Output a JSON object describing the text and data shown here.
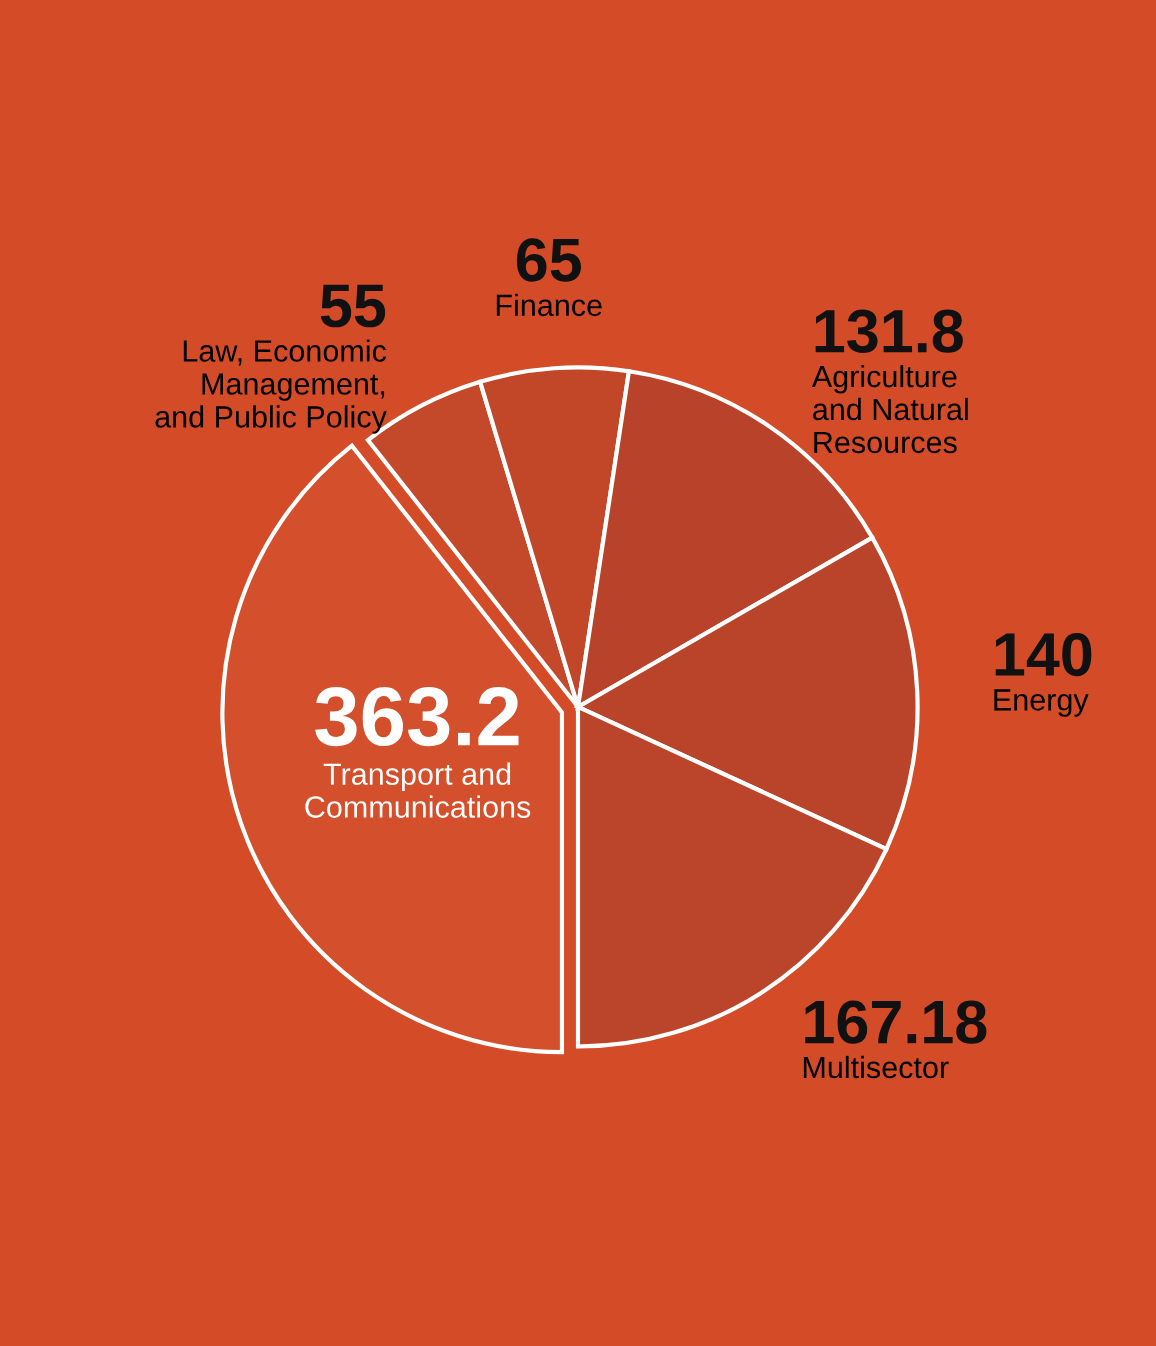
{
  "chart_data": {
    "type": "pie",
    "categories": [
      "Transport and\nCommunications",
      "Law, Economic\nManagement,\nand Public Policy",
      "Finance",
      "Agriculture\nand Natural\nResources",
      "Energy",
      "Multisector"
    ],
    "values": [
      363.2,
      55,
      65,
      131.8,
      140,
      167.18
    ],
    "colors": [
      "#d44f2b",
      "#c4482a",
      "#c24729",
      "#b8432a",
      "#b9442a",
      "#bb452a"
    ],
    "data_labels": true,
    "legend": false
  }
}
